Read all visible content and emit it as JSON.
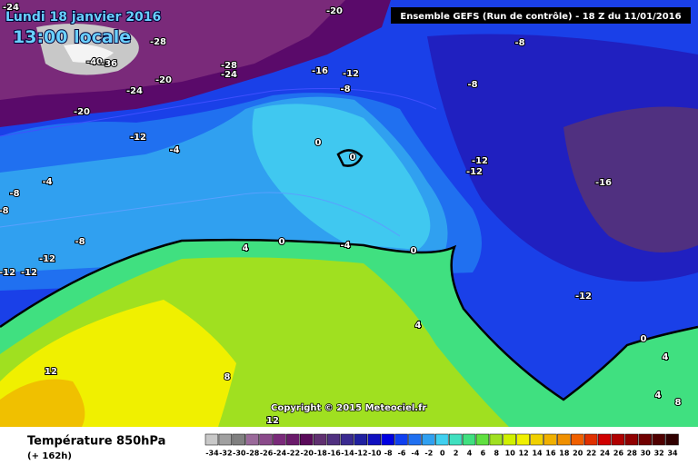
{
  "header": {
    "date": "Lundi 18 janvier 2016",
    "time": "13:00 locale",
    "run": "Ensemble GEFS  (Run de contrôle)  - 18 Z du 11/01/2016"
  },
  "copyright": "Copyright © 2015 Meteociel.fr",
  "footer": {
    "title": "Température 850hPa",
    "subtitle": "(+ 162h)"
  },
  "map": {
    "labels": [
      -24,
      -20,
      -28,
      -40,
      -36,
      -28,
      -24,
      -24,
      -20,
      -16,
      -12,
      -8,
      -8,
      -8,
      -20,
      -12,
      -4,
      -4,
      -8,
      -8,
      0,
      0,
      -12,
      -12,
      -16,
      -8,
      4,
      0,
      -4,
      0,
      -12,
      -12,
      -12,
      -12,
      4,
      0,
      4,
      12,
      8,
      4,
      8,
      12
    ]
  },
  "scale": {
    "labels": [
      -34,
      -32,
      -30,
      -28,
      -26,
      -24,
      -22,
      -20,
      -18,
      -16,
      -14,
      -12,
      -10,
      -8,
      -6,
      -4,
      -2,
      0,
      2,
      4,
      6,
      8,
      10,
      12,
      14,
      16,
      18,
      20,
      22,
      24,
      26,
      28,
      30,
      32,
      34
    ],
    "colors": [
      "#c8c8c8",
      "#a0a0a0",
      "#808080",
      "#9a6a9a",
      "#8a4a8a",
      "#7a2a7a",
      "#6a1a6a",
      "#5a0a5a",
      "#603070",
      "#503080",
      "#3a2a90",
      "#2020a0",
      "#1010c0",
      "#0000e0",
      "#1040f0",
      "#2070f0",
      "#30a0f0",
      "#40d0f0",
      "#40e0c0",
      "#40e080",
      "#60e040",
      "#a0e020",
      "#d0f000",
      "#f0f000",
      "#f0d000",
      "#f0b000",
      "#f09000",
      "#f06000",
      "#e03000",
      "#d00000",
      "#b00000",
      "#900000",
      "#700000",
      "#500000",
      "#300000"
    ]
  }
}
